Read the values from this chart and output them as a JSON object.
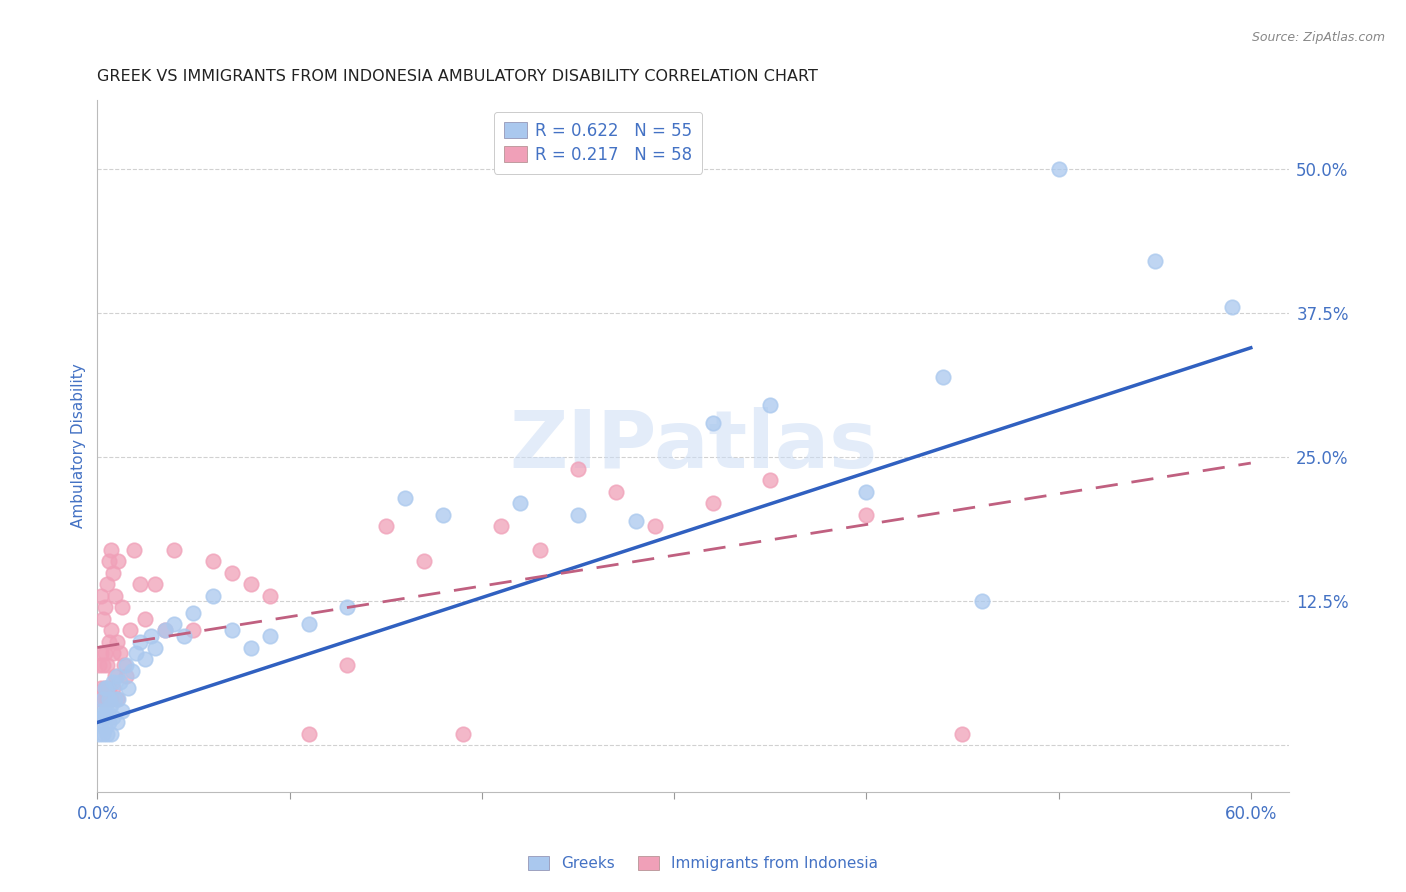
{
  "title": "GREEK VS IMMIGRANTS FROM INDONESIA AMBULATORY DISABILITY CORRELATION CHART",
  "source": "Source: ZipAtlas.com",
  "ylabel": "Ambulatory Disability",
  "xlim": [
    0.0,
    0.62
  ],
  "ylim": [
    -0.04,
    0.56
  ],
  "xticks": [
    0.0,
    0.1,
    0.2,
    0.3,
    0.4,
    0.5,
    0.6
  ],
  "xticklabels": [
    "0.0%",
    "",
    "",
    "",
    "",
    "",
    "60.0%"
  ],
  "ytick_positions": [
    0.0,
    0.125,
    0.25,
    0.375,
    0.5
  ],
  "ytick_labels": [
    "",
    "12.5%",
    "25.0%",
    "37.5%",
    "50.0%"
  ],
  "watermark_text": "ZIPatlas",
  "series1_color": "#aac8ee",
  "series2_color": "#f0a0b8",
  "trendline1_color": "#3060c0",
  "trendline2_color": "#c06080",
  "grid_color": "#cccccc",
  "title_color": "#222222",
  "axis_label_color": "#4472c4",
  "tick_color": "#4472c4",
  "legend_label1": "R = 0.622   N = 55",
  "legend_label2": "R = 0.217   N = 58",
  "bottom_label1": "Greeks",
  "bottom_label2": "Immigrants from Indonesia",
  "greek_x": [
    0.001,
    0.002,
    0.002,
    0.003,
    0.003,
    0.003,
    0.004,
    0.004,
    0.004,
    0.005,
    0.005,
    0.005,
    0.006,
    0.006,
    0.007,
    0.007,
    0.008,
    0.008,
    0.009,
    0.01,
    0.01,
    0.011,
    0.012,
    0.013,
    0.015,
    0.016,
    0.018,
    0.02,
    0.022,
    0.025,
    0.028,
    0.03,
    0.035,
    0.04,
    0.045,
    0.05,
    0.06,
    0.07,
    0.08,
    0.09,
    0.11,
    0.13,
    0.16,
    0.18,
    0.22,
    0.25,
    0.28,
    0.32,
    0.35,
    0.4,
    0.44,
    0.46,
    0.5,
    0.55,
    0.59
  ],
  "greek_y": [
    0.01,
    0.02,
    0.03,
    0.01,
    0.025,
    0.04,
    0.015,
    0.03,
    0.05,
    0.01,
    0.03,
    0.05,
    0.02,
    0.04,
    0.01,
    0.035,
    0.025,
    0.055,
    0.04,
    0.02,
    0.06,
    0.04,
    0.055,
    0.03,
    0.07,
    0.05,
    0.065,
    0.08,
    0.09,
    0.075,
    0.095,
    0.085,
    0.1,
    0.105,
    0.095,
    0.115,
    0.13,
    0.1,
    0.085,
    0.095,
    0.105,
    0.12,
    0.215,
    0.2,
    0.21,
    0.2,
    0.195,
    0.28,
    0.295,
    0.22,
    0.32,
    0.125,
    0.5,
    0.42,
    0.38
  ],
  "indonesia_x": [
    0.001,
    0.001,
    0.002,
    0.002,
    0.002,
    0.003,
    0.003,
    0.003,
    0.004,
    0.004,
    0.004,
    0.005,
    0.005,
    0.005,
    0.006,
    0.006,
    0.006,
    0.007,
    0.007,
    0.007,
    0.008,
    0.008,
    0.008,
    0.009,
    0.009,
    0.01,
    0.01,
    0.011,
    0.012,
    0.013,
    0.014,
    0.015,
    0.017,
    0.019,
    0.022,
    0.025,
    0.03,
    0.035,
    0.04,
    0.05,
    0.06,
    0.07,
    0.08,
    0.09,
    0.11,
    0.13,
    0.15,
    0.17,
    0.19,
    0.21,
    0.23,
    0.25,
    0.27,
    0.29,
    0.32,
    0.35,
    0.4,
    0.45
  ],
  "indonesia_y": [
    0.04,
    0.07,
    0.05,
    0.08,
    0.13,
    0.04,
    0.07,
    0.11,
    0.05,
    0.08,
    0.12,
    0.04,
    0.07,
    0.14,
    0.05,
    0.09,
    0.16,
    0.04,
    0.1,
    0.17,
    0.05,
    0.08,
    0.15,
    0.06,
    0.13,
    0.04,
    0.09,
    0.16,
    0.08,
    0.12,
    0.07,
    0.06,
    0.1,
    0.17,
    0.14,
    0.11,
    0.14,
    0.1,
    0.17,
    0.1,
    0.16,
    0.15,
    0.14,
    0.13,
    0.01,
    0.07,
    0.19,
    0.16,
    0.01,
    0.19,
    0.17,
    0.24,
    0.22,
    0.19,
    0.21,
    0.23,
    0.2,
    0.01
  ],
  "trendline1_x": [
    0.0,
    0.6
  ],
  "trendline1_y": [
    0.02,
    0.345
  ],
  "trendline2_x": [
    0.0,
    0.6
  ],
  "trendline2_y": [
    0.085,
    0.245
  ]
}
